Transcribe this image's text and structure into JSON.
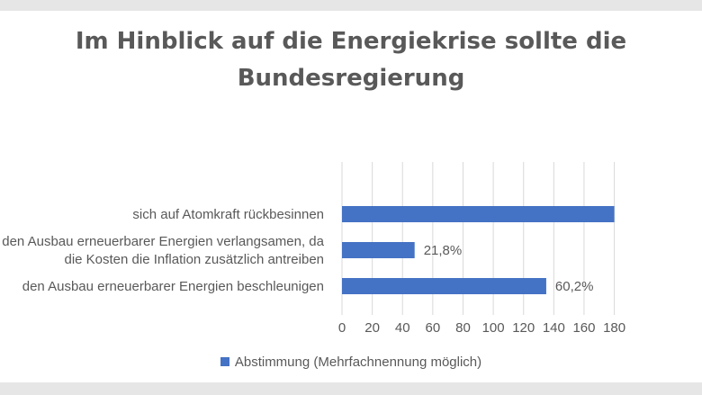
{
  "chart_data": {
    "type": "bar",
    "orientation": "horizontal",
    "title_lines": [
      "Im Hinblick auf die Energiekrise sollte die",
      "Bundesregierung"
    ],
    "categories": [
      [
        "sich auf Atomkraft rückbesinnen"
      ],
      [
        "den Ausbau erneuerbarer Energien verlangsamen, da",
        "die Kosten die Inflation zusätzlich antreiben"
      ],
      [
        "den Ausbau erneuerbarer Energien beschleunigen"
      ]
    ],
    "series": [
      {
        "name": "Abstimmung (Mehrfachnennung möglich)",
        "values": [
          180,
          48,
          135
        ],
        "data_labels": [
          "",
          "21,8%",
          "60,2%"
        ]
      }
    ],
    "xlim": [
      0,
      180
    ],
    "xticks": [
      0,
      20,
      40,
      60,
      80,
      100,
      120,
      140,
      160,
      180
    ],
    "grid": "vertical",
    "legend_position": "bottom",
    "bar_color": "#4472c4"
  }
}
